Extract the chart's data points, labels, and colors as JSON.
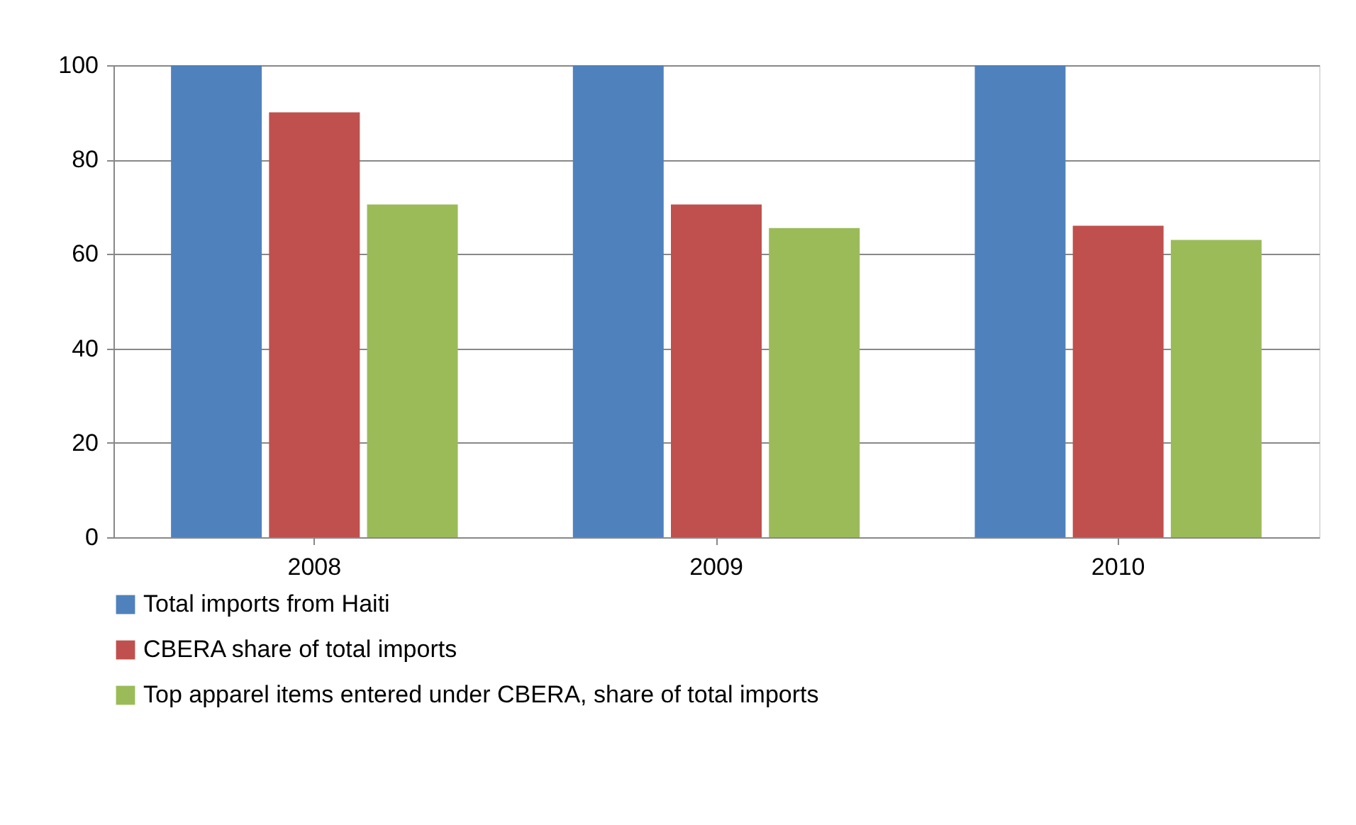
{
  "chart_data": {
    "type": "bar",
    "categories": [
      "2008",
      "2009",
      "2010"
    ],
    "series": [
      {
        "name": "Total imports from Haiti",
        "color": "#4f81bd",
        "values": [
          100,
          100,
          100
        ]
      },
      {
        "name": "CBERA share of total imports",
        "color": "#c0504d",
        "values": [
          90,
          70.5,
          66
        ]
      },
      {
        "name": "Top apparel items entered under CBERA, share of total imports",
        "color": "#9bbb59",
        "values": [
          70.5,
          65.5,
          63
        ]
      }
    ],
    "ylim": [
      0,
      100
    ],
    "yticks": [
      0,
      20,
      40,
      60,
      80,
      100
    ],
    "grid": "y",
    "legend": "bottom"
  }
}
